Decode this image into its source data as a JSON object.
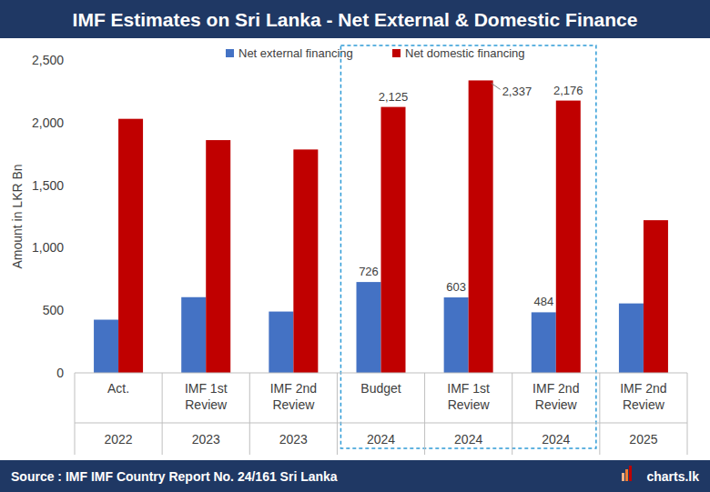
{
  "chart_data": {
    "type": "bar",
    "title": "IMF Estimates on Sri Lanka - Net External & Domestic Finance",
    "y_label": "Amount in LKR Bn",
    "source": "Source : IMF IMF Country Report No. 24/161  Sri Lanka",
    "brand": "charts.lk",
    "categories": [
      "Act.",
      "IMF 1st Review",
      "IMF 2nd Review",
      "Budget",
      "IMF 1st Review",
      "IMF 2nd Review",
      "IMF 2nd Review"
    ],
    "years": [
      "2022",
      "2023",
      "2023",
      "2024",
      "2024",
      "2024",
      "2025"
    ],
    "series": [
      {
        "name": "Net external financing",
        "color": "#4472c4",
        "values": [
          425,
          605,
          490,
          726,
          603,
          484,
          555
        ],
        "value_labels": [
          null,
          null,
          null,
          "726",
          "603",
          "484",
          null
        ]
      },
      {
        "name": "Net domestic financing",
        "color": "#c00000",
        "values": [
          2030,
          1860,
          1785,
          2125,
          2337,
          2176,
          1220
        ],
        "value_labels": [
          null,
          null,
          null,
          "2,125",
          "2,337",
          "2,176",
          null
        ]
      }
    ],
    "ylim": [
      0,
      2500
    ],
    "yticks": [
      0,
      500,
      {
        "value": 1000,
        "label": "1,000"
      },
      {
        "value": 1500,
        "label": "1,500"
      },
      {
        "value": 2000,
        "label": "2,000"
      },
      {
        "value": 2500,
        "label": "2,500"
      }
    ],
    "grid": false,
    "legend": "top",
    "data_labels": true
  }
}
